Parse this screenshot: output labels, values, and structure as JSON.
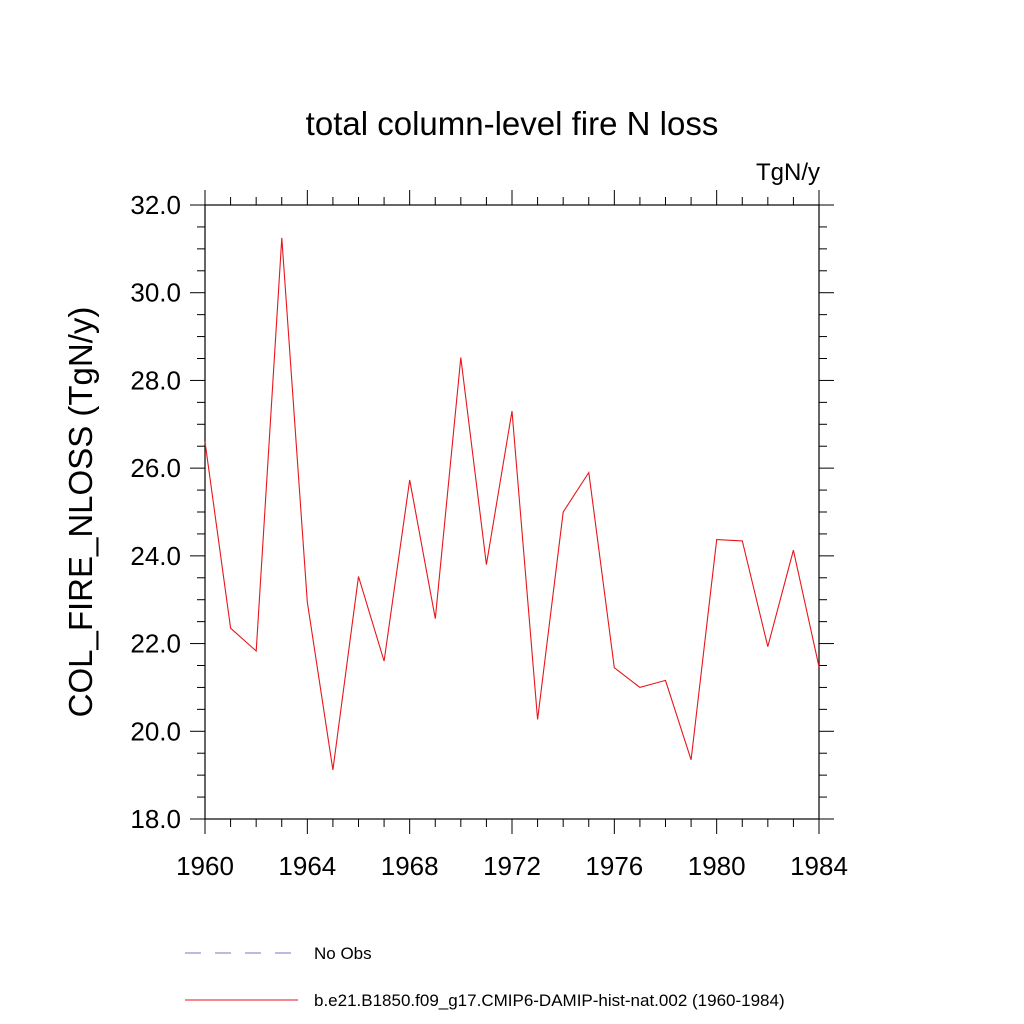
{
  "chart_data": {
    "type": "line",
    "title": "total column-level fire N loss",
    "units_label": "TgN/y",
    "ylabel": "COL_FIRE_NLOSS  (TgN/y)",
    "xlabel": "",
    "xlim": [
      1960,
      1984
    ],
    "ylim": [
      18.0,
      32.0
    ],
    "x_ticks": [
      1960,
      1964,
      1968,
      1972,
      1976,
      1980,
      1984
    ],
    "x_tick_labels": [
      "1960",
      "1964",
      "1968",
      "1972",
      "1976",
      "1980",
      "1984"
    ],
    "y_ticks": [
      18.0,
      20.0,
      22.0,
      24.0,
      26.0,
      28.0,
      30.0,
      32.0
    ],
    "y_tick_labels": [
      "18.0",
      "20.0",
      "22.0",
      "24.0",
      "26.0",
      "28.0",
      "30.0",
      "32.0"
    ],
    "grid": false,
    "legend_position": "bottom",
    "series": [
      {
        "name": "b.e21.B1850.f09_g17.CMIP6-DAMIP-hist-nat.002 (1960-1984)",
        "color": "#e8161b",
        "style": "solid",
        "x": [
          1960,
          1961,
          1962,
          1963,
          1964,
          1965,
          1966,
          1967,
          1968,
          1969,
          1970,
          1971,
          1972,
          1973,
          1974,
          1975,
          1976,
          1977,
          1978,
          1979,
          1980,
          1981,
          1982,
          1983,
          1984
        ],
        "values": [
          26.6,
          22.35,
          21.83,
          31.25,
          22.95,
          19.12,
          23.53,
          21.6,
          25.73,
          22.57,
          28.52,
          23.8,
          27.3,
          20.27,
          25.0,
          25.9,
          21.45,
          21.0,
          21.16,
          19.35,
          24.37,
          24.34,
          21.93,
          24.13,
          21.47
        ]
      },
      {
        "name": "No Obs",
        "color": "#7b73c4",
        "style": "dashed",
        "x": [],
        "values": []
      }
    ]
  }
}
